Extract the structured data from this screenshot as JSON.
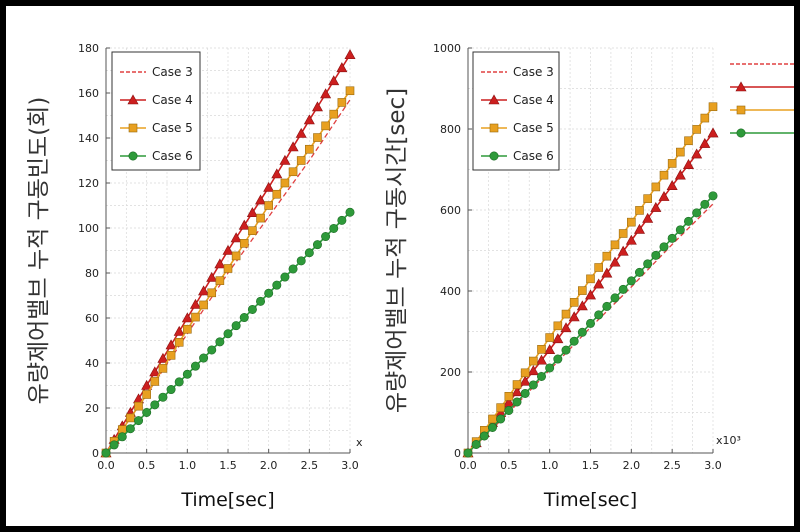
{
  "colors": {
    "case3": "#e04040",
    "case4": "#cc1f1f",
    "case5": "#e8a020",
    "case6": "#2e9a3a",
    "grid": "#d9d9d9",
    "frame": "#000000"
  },
  "chart_data": [
    {
      "type": "line",
      "xlabel": "Time[sec]",
      "ylabel": "유량제어밸브 누적 구동빈도(회)",
      "axis_multiplier": "x",
      "xlim": [
        0,
        3.0
      ],
      "ylim": [
        0,
        180
      ],
      "xticks": [
        "0.0",
        "0.5",
        "1.0",
        "1.5",
        "2.0",
        "2.5",
        "3.0"
      ],
      "yticks": [
        "0",
        "20",
        "40",
        "60",
        "80",
        "100",
        "120",
        "140",
        "160",
        "180"
      ],
      "legend_position": "top-left",
      "grid": true,
      "series": [
        {
          "name": "Case 3",
          "marker": "none",
          "style": "dashed",
          "x": [
            0,
            0.5,
            1.0,
            1.5,
            2.0,
            2.5,
            3.0
          ],
          "y": [
            0,
            26,
            53,
            80,
            105,
            130,
            157
          ]
        },
        {
          "name": "Case 4",
          "marker": "triangle",
          "style": "solid",
          "x": [
            0,
            0.5,
            1.0,
            1.5,
            2.0,
            2.5,
            3.0
          ],
          "y": [
            0,
            30,
            60,
            90,
            118,
            148,
            177
          ]
        },
        {
          "name": "Case 5",
          "marker": "square",
          "style": "solid",
          "x": [
            0,
            0.5,
            1.0,
            1.5,
            2.0,
            2.5,
            3.0
          ],
          "y": [
            0,
            26,
            55,
            82,
            110,
            135,
            161
          ]
        },
        {
          "name": "Case 6",
          "marker": "circle",
          "style": "solid",
          "x": [
            0,
            0.5,
            1.0,
            1.5,
            2.0,
            2.5,
            3.0
          ],
          "y": [
            0,
            18,
            35,
            53,
            71,
            89,
            107
          ]
        }
      ]
    },
    {
      "type": "line",
      "xlabel": "Time[sec]",
      "ylabel": "유량제어밸브 누적 구동시간[sec]",
      "axis_multiplier": "x10³",
      "xlim": [
        0,
        3.0
      ],
      "ylim": [
        0,
        1000
      ],
      "xticks": [
        "0.0",
        "0.5",
        "1.0",
        "1.5",
        "2.0",
        "2.5",
        "3.0"
      ],
      "yticks": [
        "0",
        "200",
        "400",
        "600",
        "800",
        "1000"
      ],
      "legend_position": "top-left",
      "grid": true,
      "series": [
        {
          "name": "Case 3",
          "marker": "none",
          "style": "dashed",
          "x": [
            0,
            0.5,
            1.0,
            1.5,
            2.0,
            2.5,
            3.0
          ],
          "y": [
            0,
            100,
            205,
            310,
            410,
            515,
            615
          ]
        },
        {
          "name": "Case 4",
          "marker": "triangle",
          "style": "solid",
          "x": [
            0,
            0.5,
            1.0,
            1.5,
            2.0,
            2.5,
            3.0
          ],
          "y": [
            0,
            125,
            255,
            390,
            525,
            660,
            790
          ]
        },
        {
          "name": "Case 5",
          "marker": "square",
          "style": "solid",
          "x": [
            0,
            0.5,
            1.0,
            1.5,
            2.0,
            2.5,
            3.0
          ],
          "y": [
            0,
            140,
            285,
            430,
            570,
            715,
            855
          ]
        },
        {
          "name": "Case 6",
          "marker": "circle",
          "style": "solid",
          "x": [
            0,
            0.5,
            1.0,
            1.5,
            2.0,
            2.5,
            3.0
          ],
          "y": [
            0,
            105,
            210,
            320,
            425,
            530,
            635
          ]
        }
      ]
    }
  ]
}
